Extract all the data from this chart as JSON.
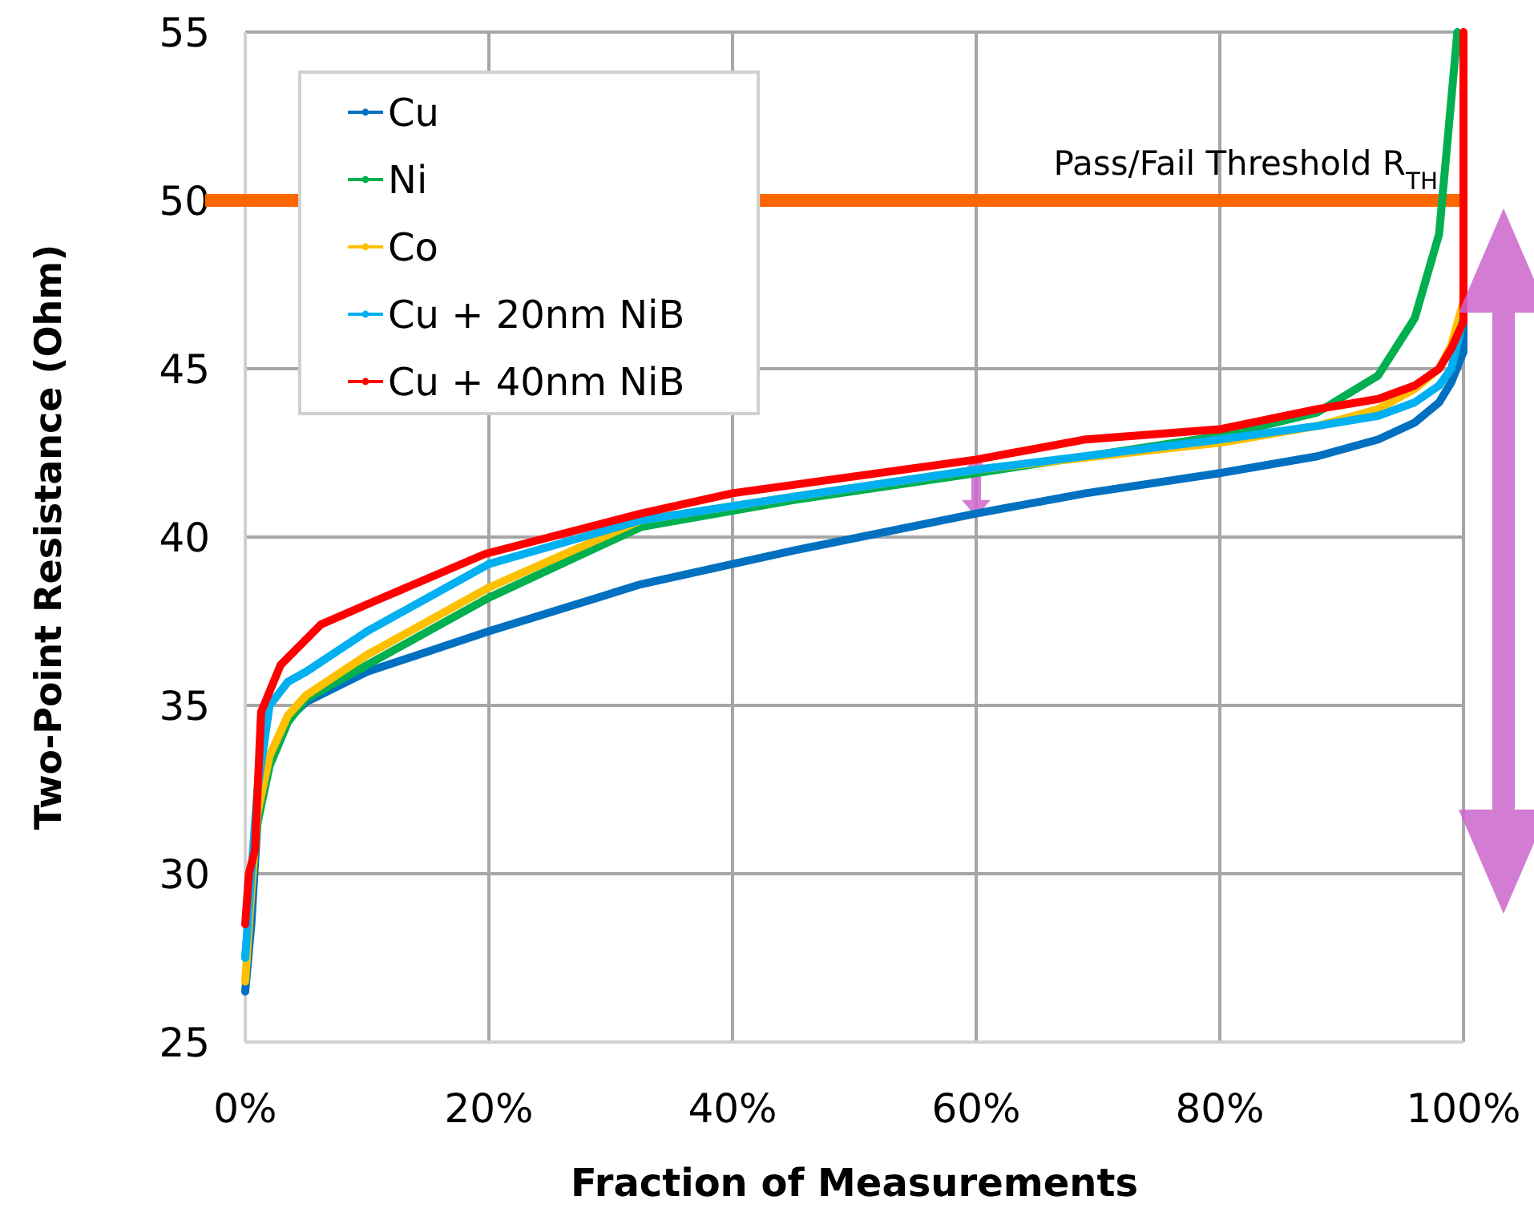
{
  "chart_data": {
    "type": "line",
    "xlabel": "Fraction of Measurements",
    "ylabel": "Two-Point Resistance (Ohm)",
    "xlim": [
      0,
      1
    ],
    "ylim": [
      25,
      55
    ],
    "xticks": [
      {
        "value": 0,
        "label": "0%"
      },
      {
        "value": 0.2,
        "label": "20%"
      },
      {
        "value": 0.4,
        "label": "40%"
      },
      {
        "value": 0.6,
        "label": "60%"
      },
      {
        "value": 0.8,
        "label": "80%"
      },
      {
        "value": 1,
        "label": "100%"
      }
    ],
    "yticks": [
      25,
      30,
      35,
      40,
      45,
      50,
      55
    ],
    "grid": true,
    "legend": "top left",
    "marker": "circle",
    "line_style": "solid",
    "series": [
      {
        "name": "Cu",
        "color": "#0070c0",
        "x": [
          0,
          0.005,
          0.01,
          0.02,
          0.035,
          0.05,
          0.1,
          0.2,
          0.325,
          0.45,
          0.6,
          0.69,
          0.8,
          0.88,
          0.93,
          0.96,
          0.98,
          0.99,
          1,
          1
        ],
        "values": [
          26.5,
          28.5,
          31.5,
          33.5,
          34.6,
          35.1,
          36.0,
          37.2,
          38.6,
          39.6,
          40.7,
          41.3,
          41.9,
          42.4,
          42.9,
          43.4,
          44.0,
          44.6,
          45.5,
          54.5
        ]
      },
      {
        "name": "Ni",
        "color": "#00b050",
        "x": [
          0,
          0.005,
          0.01,
          0.02,
          0.035,
          0.05,
          0.1,
          0.2,
          0.325,
          0.45,
          0.6,
          0.8,
          0.88,
          0.93,
          0.96,
          0.98,
          0.99,
          0.995
        ],
        "values": [
          27.5,
          29.5,
          31.5,
          33.2,
          34.5,
          35.2,
          36.2,
          38.2,
          40.3,
          41.1,
          41.9,
          43.0,
          43.7,
          44.8,
          46.5,
          49,
          53,
          55
        ]
      },
      {
        "name": "Co",
        "color": "#ffc000",
        "x": [
          0,
          0.005,
          0.01,
          0.02,
          0.035,
          0.05,
          0.1,
          0.2,
          0.325,
          0.45,
          0.6,
          0.8,
          0.88,
          0.93,
          0.96,
          0.98,
          0.99,
          1
        ],
        "values": [
          26.8,
          29.5,
          31.8,
          33.5,
          34.7,
          35.3,
          36.5,
          38.5,
          40.5,
          41.2,
          42.0,
          42.8,
          43.3,
          43.8,
          44.4,
          45.0,
          45.7,
          47
        ]
      },
      {
        "name": "Cu + 20nm NiB",
        "color": "#00b0f0",
        "x": [
          0,
          0.005,
          0.01,
          0.02,
          0.035,
          0.05,
          0.1,
          0.2,
          0.325,
          0.45,
          0.6,
          0.8,
          0.88,
          0.93,
          0.96,
          0.98,
          0.99,
          1
        ],
        "values": [
          27.5,
          30.0,
          32.5,
          35.0,
          35.7,
          36.0,
          37.2,
          39.2,
          40.5,
          41.2,
          42.0,
          42.9,
          43.3,
          43.6,
          44.0,
          44.5,
          45.0,
          46.5
        ]
      },
      {
        "name": "Cu + 40nm NiB",
        "color": "#ff0000",
        "x": [
          0,
          0.003,
          0.008,
          0.013,
          0.029,
          0.062,
          0.1,
          0.197,
          0.325,
          0.4,
          0.6,
          0.69,
          0.8,
          0.88,
          0.93,
          0.96,
          0.98,
          0.99,
          1,
          1,
          1
        ],
        "values": [
          28.5,
          30.0,
          30.7,
          34.8,
          36.2,
          37.4,
          38.0,
          39.5,
          40.7,
          41.3,
          42.3,
          42.9,
          43.2,
          43.8,
          44.1,
          44.5,
          45.0,
          45.6,
          46.4,
          48,
          55
        ]
      }
    ],
    "ref_lines": [
      {
        "axis": "y",
        "value": 50,
        "label": "Pass/Fail Threshold R$_{TH}$",
        "color": "#ff6600",
        "line_style": "solid"
      }
    ]
  }
}
